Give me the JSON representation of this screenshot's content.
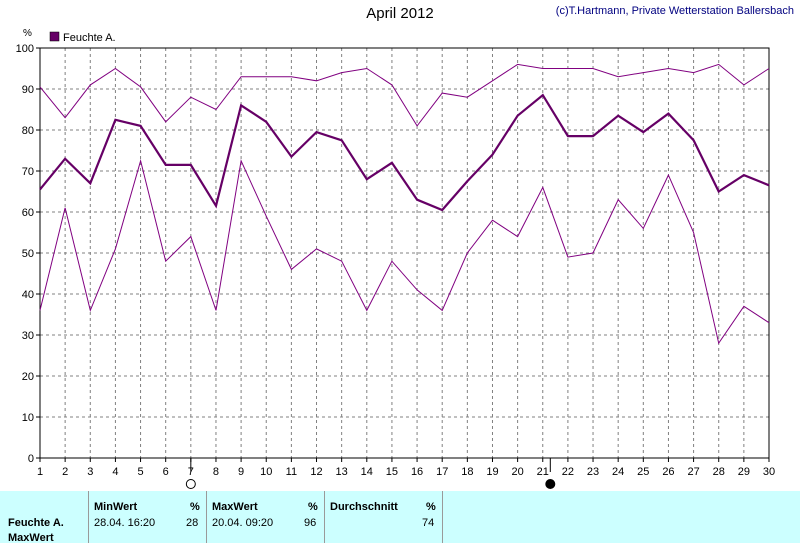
{
  "header": {
    "title": "April 2012",
    "copyright": "(c)T.Hartmann, Private Wetterstation Ballersbach"
  },
  "chart_data": {
    "type": "line",
    "ylabel": "%",
    "ylim": [
      0,
      100
    ],
    "yticks": [
      0,
      10,
      20,
      30,
      40,
      50,
      60,
      70,
      80,
      90,
      100
    ],
    "x": [
      1,
      2,
      3,
      4,
      5,
      6,
      7,
      8,
      9,
      10,
      11,
      12,
      13,
      14,
      15,
      16,
      17,
      18,
      19,
      20,
      21,
      22,
      23,
      24,
      25,
      26,
      27,
      28,
      29,
      30
    ],
    "xlim": [
      1,
      30
    ],
    "grid": true,
    "legend": "top-left",
    "legend_label": "Feuchte A.",
    "series": [
      {
        "name": "Feuchte A.",
        "role": "mean",
        "color": "#660066",
        "values": [
          65.5,
          73,
          67,
          82.5,
          81,
          71.5,
          71.5,
          61.5,
          86,
          82,
          73.5,
          79.5,
          77.5,
          68,
          72,
          63,
          60.5,
          67.5,
          74,
          83.5,
          88.5,
          78.5,
          78.5,
          83.5,
          79.5,
          84,
          77.5,
          65,
          69,
          66.5
        ]
      },
      {
        "role": "max",
        "color": "#800080",
        "values": [
          90.5,
          83,
          91,
          95,
          90.5,
          82,
          88,
          85,
          93,
          93,
          93,
          92,
          94,
          95,
          91,
          81,
          89,
          88,
          92,
          96,
          95,
          95,
          95,
          93,
          94,
          95,
          94,
          96,
          91,
          95
        ]
      },
      {
        "role": "min",
        "color": "#800080",
        "values": [
          36,
          61,
          36,
          51,
          72.5,
          48,
          54,
          36,
          72.5,
          59,
          46,
          51,
          48,
          36,
          48,
          41,
          36,
          50,
          58,
          54,
          66,
          49,
          50,
          63,
          56,
          69,
          55,
          28,
          37,
          33
        ]
      }
    ],
    "moon_markers": [
      {
        "x": 7,
        "phase": "full-moon"
      },
      {
        "x": 21.3,
        "phase": "new-moon"
      }
    ]
  },
  "stats": {
    "row_label": "Feuchte A.",
    "row_label2": "MaxWert",
    "min_header": "MinWert",
    "min_unit": "%",
    "min_time": "28.04.  16:20",
    "min_value": "28",
    "max_header": "MaxWert",
    "max_unit": "%",
    "max_time": "20.04.  09:20",
    "max_value": "96",
    "avg_header": "Durchschnitt",
    "avg_unit": "%",
    "avg_value": "74"
  }
}
